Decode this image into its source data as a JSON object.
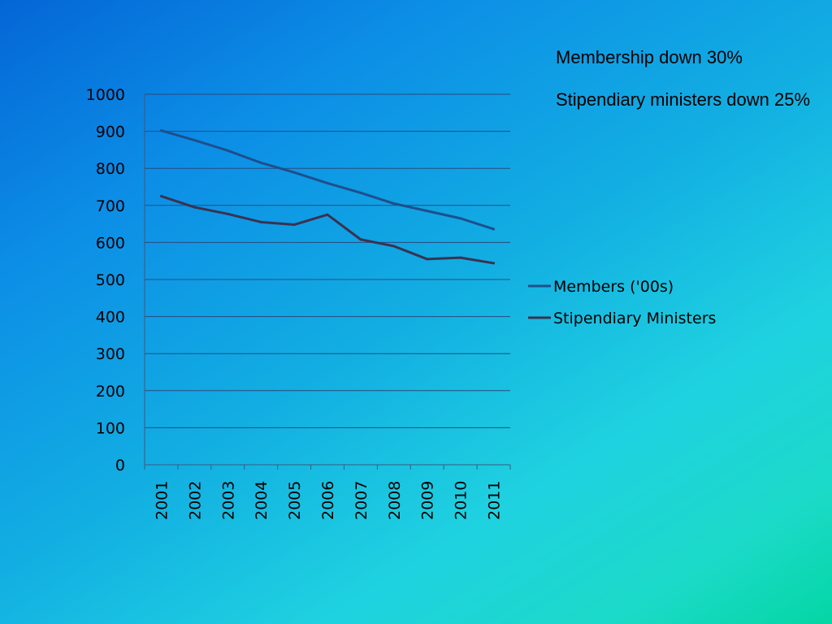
{
  "notes": [
    "Membership down 30%",
    "Stipendiary ministers down 25%"
  ],
  "colors": {
    "background_start": "#0466d6",
    "background_end": "#04d6a4",
    "gridline": "#2a4a7c",
    "axis": "#3a5a80",
    "text": "#000000"
  },
  "chart_data": {
    "type": "line",
    "title": "",
    "xlabel": "",
    "ylabel": "",
    "categories": [
      "2001",
      "2002",
      "2003",
      "2004",
      "2005",
      "2006",
      "2007",
      "2008",
      "2009",
      "2010",
      "2011"
    ],
    "ylim": [
      0,
      1000
    ],
    "yticks": [
      0,
      100,
      200,
      300,
      400,
      500,
      600,
      700,
      800,
      900,
      1000
    ],
    "grid": true,
    "legend_position": "right",
    "series": [
      {
        "name": "Members ('00s)",
        "color": "#1e4f8c",
        "values": [
          902,
          876,
          848,
          815,
          789,
          760,
          734,
          705,
          685,
          665,
          636
        ]
      },
      {
        "name": "Stipendiary Ministers",
        "color": "#3a3250",
        "values": [
          725,
          695,
          677,
          655,
          648,
          675,
          608,
          590,
          555,
          559,
          544
        ]
      }
    ]
  }
}
